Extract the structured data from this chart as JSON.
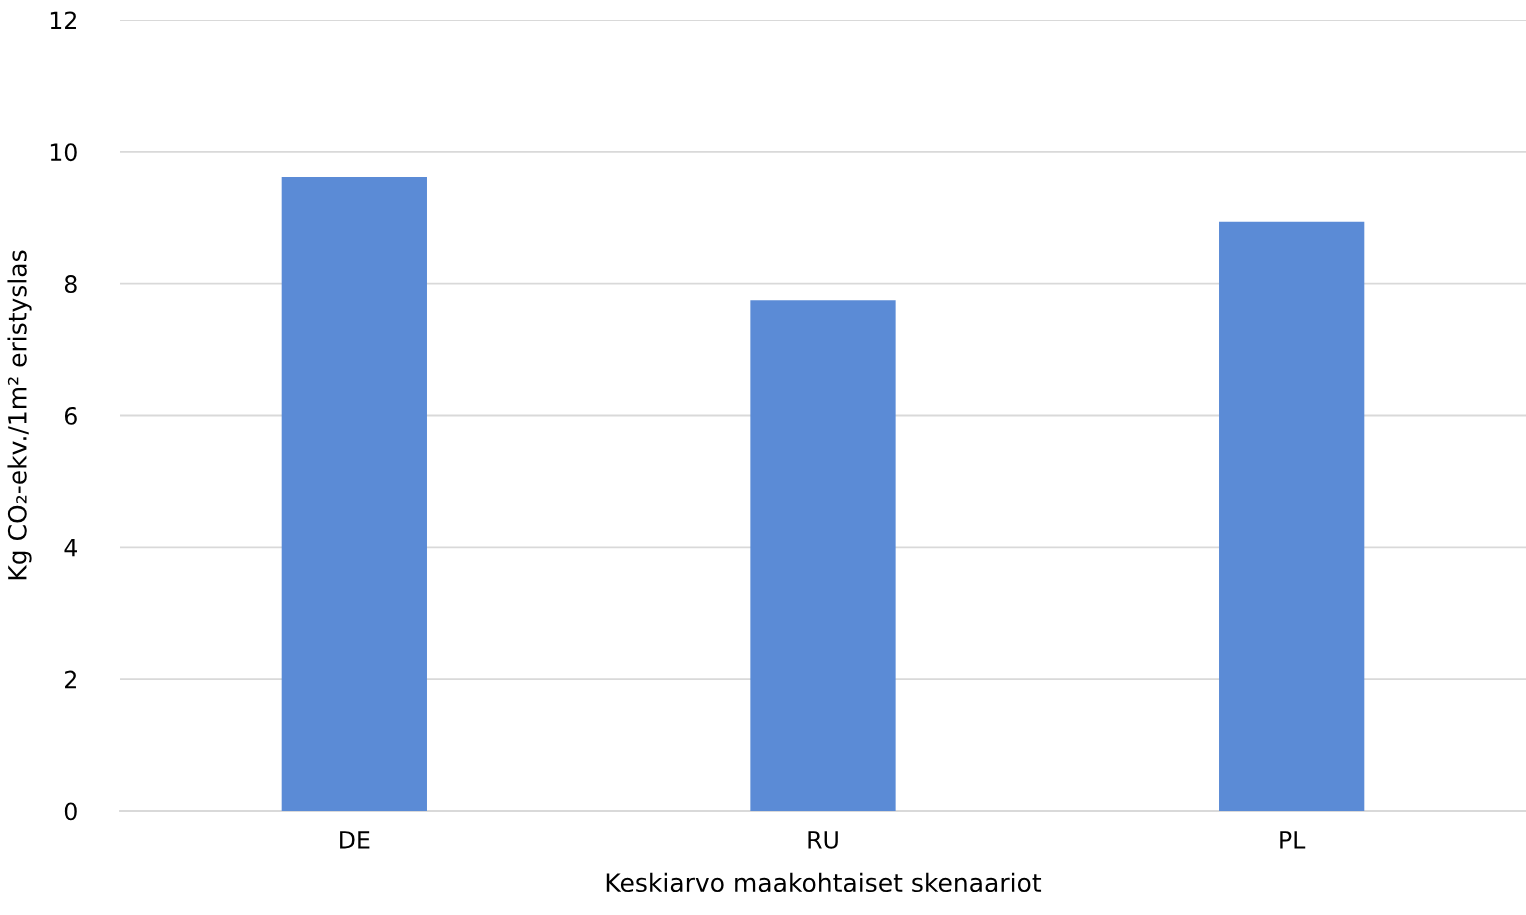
{
  "chart_data": {
    "type": "bar",
    "xlabel": "Keskiarvo maakohtaiset skenaariot",
    "ylabel": "Kg CO₂-ekv./1m² eristyslas",
    "categories": [
      "DE",
      "RU",
      "PL"
    ],
    "values": [
      9.62,
      7.75,
      8.94
    ],
    "color": "#5b8bd6",
    "ylim": [
      0,
      12
    ],
    "yticks": [
      0,
      2,
      4,
      6,
      8,
      10,
      12
    ],
    "grid": "y",
    "legend": false
  }
}
